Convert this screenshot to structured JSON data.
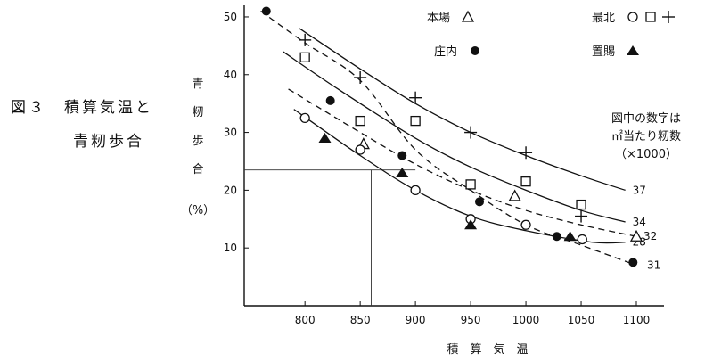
{
  "figure": {
    "caption_line1": "図３　積算気温と",
    "caption_line2": "青籾歩合"
  },
  "chart_data": {
    "type": "scatter",
    "xlabel": "積　算　気　温",
    "ylabel": "青籾歩合",
    "ylabel_unit": "（%）",
    "xlim": [
      745,
      1125
    ],
    "ylim": [
      0,
      52
    ],
    "x_ticks": [
      800,
      850,
      900,
      950,
      1000,
      1050,
      1100
    ],
    "y_ticks": [
      10,
      20,
      30,
      40,
      50
    ],
    "grid": false,
    "legend_position": "top",
    "note": "図中の数字は\n㎡当たり籾数\n（×1000）",
    "legend": [
      {
        "label": "本場",
        "markers": [
          "open-triangle"
        ]
      },
      {
        "label": "最北",
        "markers": [
          "open-circle",
          "open-square",
          "plus"
        ]
      },
      {
        "label": "庄内",
        "markers": [
          "filled-circle"
        ]
      },
      {
        "label": "置賜",
        "markers": [
          "filled-triangle"
        ]
      }
    ],
    "groups": [
      {
        "label": "本場",
        "marker": "open-triangle",
        "points": [
          [
            853,
            28
          ],
          [
            990,
            19
          ],
          [
            1100,
            12
          ]
        ]
      },
      {
        "label": "最北",
        "marker": "open-circle",
        "points": [
          [
            800,
            32.5
          ],
          [
            850,
            27
          ],
          [
            900,
            20
          ],
          [
            950,
            15
          ],
          [
            1000,
            14
          ],
          [
            1051,
            11.5
          ]
        ]
      },
      {
        "label": "最北",
        "marker": "open-square",
        "points": [
          [
            800,
            43
          ],
          [
            850,
            32
          ],
          [
            900,
            32
          ],
          [
            950,
            21
          ],
          [
            1000,
            21.5
          ],
          [
            1050,
            17.5
          ]
        ]
      },
      {
        "label": "最北",
        "marker": "plus",
        "points": [
          [
            800,
            46
          ],
          [
            850,
            39.5
          ],
          [
            900,
            36
          ],
          [
            950,
            30
          ],
          [
            1000,
            26.5
          ],
          [
            1050,
            15.5
          ]
        ]
      },
      {
        "label": "庄内",
        "marker": "filled-circle",
        "points": [
          [
            765,
            51
          ],
          [
            823,
            35.5
          ],
          [
            888,
            26
          ],
          [
            958,
            18
          ],
          [
            1028,
            12
          ],
          [
            1097,
            7.5
          ]
        ]
      },
      {
        "label": "置賜",
        "marker": "filled-triangle",
        "points": [
          [
            818,
            29
          ],
          [
            888,
            23
          ],
          [
            950,
            14
          ],
          [
            1040,
            12
          ]
        ]
      }
    ],
    "curves": [
      {
        "label": "37",
        "style": "solid",
        "points": [
          [
            795,
            48
          ],
          [
            850,
            41
          ],
          [
            900,
            35
          ],
          [
            950,
            30
          ],
          [
            1000,
            26
          ],
          [
            1050,
            22.5
          ],
          [
            1090,
            20
          ]
        ]
      },
      {
        "label": "34",
        "style": "solid",
        "points": [
          [
            780,
            44
          ],
          [
            830,
            37.5
          ],
          [
            900,
            29
          ],
          [
            950,
            24
          ],
          [
            1000,
            20
          ],
          [
            1050,
            16.5
          ],
          [
            1090,
            14.5
          ]
        ]
      },
      {
        "label": "32",
        "style": "dashed",
        "points": [
          [
            785,
            37.5
          ],
          [
            850,
            30
          ],
          [
            900,
            24.5
          ],
          [
            950,
            20
          ],
          [
            1000,
            16.5
          ],
          [
            1050,
            14
          ],
          [
            1100,
            12
          ]
        ]
      },
      {
        "label": "28",
        "style": "solid",
        "points": [
          [
            790,
            34
          ],
          [
            850,
            26
          ],
          [
            900,
            20
          ],
          [
            950,
            15.5
          ],
          [
            1000,
            13
          ],
          [
            1060,
            11
          ],
          [
            1090,
            11
          ]
        ]
      },
      {
        "label": "31",
        "style": "dashed",
        "points": [
          [
            760,
            51
          ],
          [
            800,
            45.5
          ],
          [
            850,
            39
          ],
          [
            900,
            27
          ],
          [
            950,
            20
          ],
          [
            1000,
            14
          ],
          [
            1050,
            10.5
          ],
          [
            1100,
            7
          ]
        ]
      }
    ],
    "reference_lines": [
      {
        "x": 860,
        "y": 23.5
      }
    ]
  }
}
